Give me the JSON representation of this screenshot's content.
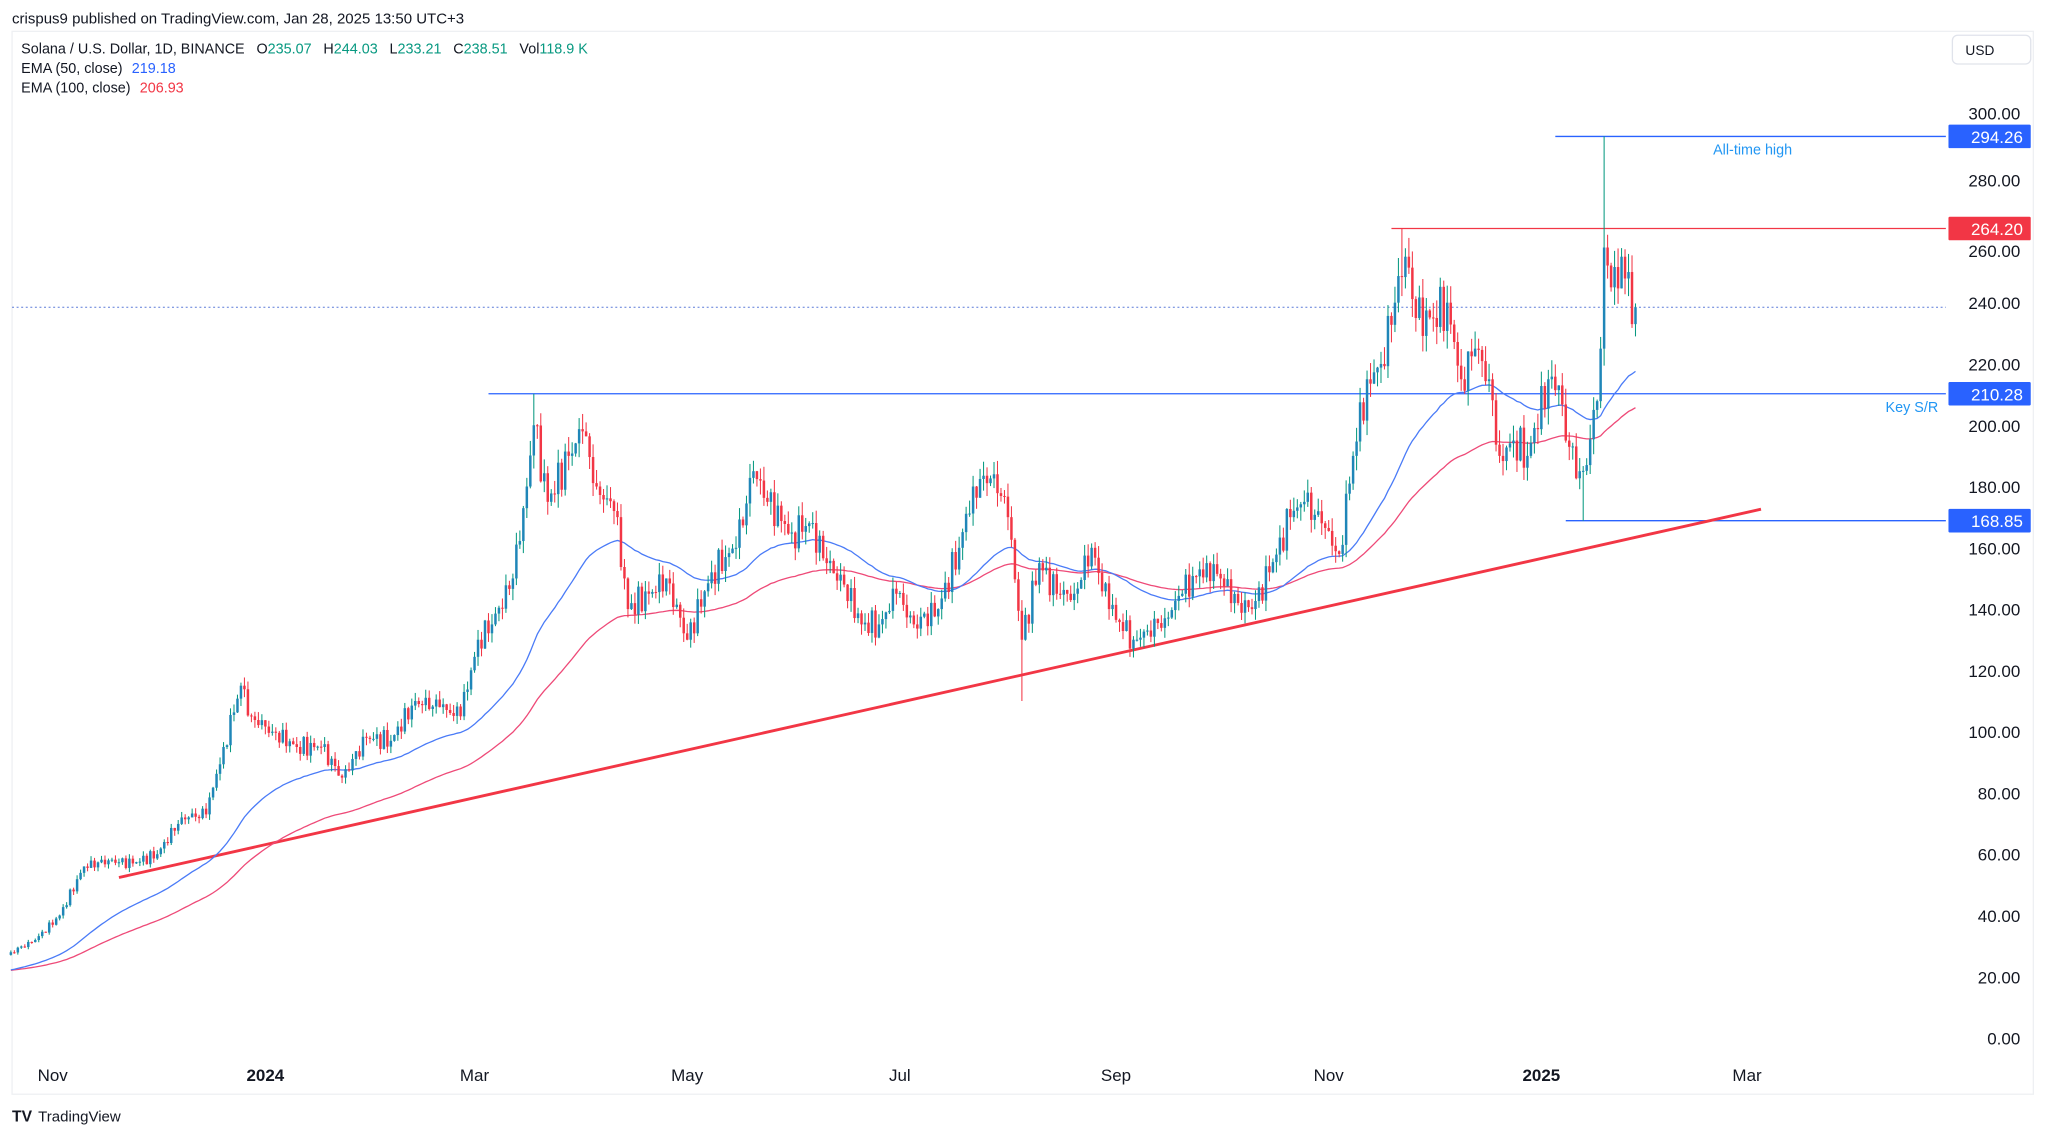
{
  "publisher_line": "crispus9 published on TradingView.com, Jan 28, 2025 13:50 UTC+3",
  "legend": {
    "symbol": "Solana / U.S. Dollar, 1D, BINANCE",
    "o_label": "O",
    "o_value": "235.07",
    "h_label": "H",
    "h_value": "244.03",
    "l_label": "L",
    "l_value": "233.21",
    "c_label": "C",
    "c_value": "238.51",
    "vol_label": "Vol",
    "vol_value": "118.9 K",
    "ema50_label": "EMA (50, close)",
    "ema50_value": "219.18",
    "ema100_label": "EMA (100, close)",
    "ema100_value": "206.93"
  },
  "currency_button": "USD",
  "footer_logo_text": "TradingView",
  "colors": {
    "up": "#089981",
    "up_body": "#1f86b8",
    "down": "#f23645",
    "ema50": "#4a7bf7",
    "ema100": "#ee4a78",
    "level_blue": "#2962ff",
    "level_red": "#f23645",
    "annotation_blue": "#2196f3"
  },
  "chart_data": {
    "type": "candlestick",
    "ylim": [
      0,
      300
    ],
    "y_ticks": [
      "300.00",
      "280.00",
      "260.00",
      "240.00",
      "220.00",
      "200.00",
      "180.00",
      "160.00",
      "140.00",
      "120.00",
      "100.00",
      "80.00",
      "60.00",
      "40.00",
      "20.00",
      "0.00"
    ],
    "x_ticks": [
      {
        "label": "Nov",
        "date": "2023-11-01",
        "bold": false
      },
      {
        "label": "2024",
        "date": "2024-01-01",
        "bold": true
      },
      {
        "label": "Mar",
        "date": "2024-03-01",
        "bold": false
      },
      {
        "label": "May",
        "date": "2024-05-01",
        "bold": false
      },
      {
        "label": "Jul",
        "date": "2024-07-01",
        "bold": false
      },
      {
        "label": "Sep",
        "date": "2024-09-01",
        "bold": false
      },
      {
        "label": "Nov",
        "date": "2024-11-01",
        "bold": false
      },
      {
        "label": "2025",
        "date": "2025-01-01",
        "bold": true
      },
      {
        "label": "Mar",
        "date": "2025-03-01",
        "bold": false
      }
    ],
    "approx_closes": [
      [
        "2023-10-20",
        28
      ],
      [
        "2023-10-27",
        32
      ],
      [
        "2023-11-03",
        40
      ],
      [
        "2023-11-10",
        56
      ],
      [
        "2023-11-17",
        58
      ],
      [
        "2023-11-24",
        57
      ],
      [
        "2023-12-01",
        60
      ],
      [
        "2023-12-08",
        72
      ],
      [
        "2023-12-15",
        73
      ],
      [
        "2023-12-20",
        95
      ],
      [
        "2023-12-25",
        115
      ],
      [
        "2023-12-28",
        105
      ],
      [
        "2024-01-03",
        100
      ],
      [
        "2024-01-10",
        95
      ],
      [
        "2024-01-17",
        95
      ],
      [
        "2024-01-23",
        85
      ],
      [
        "2024-01-30",
        98
      ],
      [
        "2024-02-06",
        97
      ],
      [
        "2024-02-13",
        110
      ],
      [
        "2024-02-20",
        108
      ],
      [
        "2024-02-26",
        105
      ],
      [
        "2024-03-02",
        130
      ],
      [
        "2024-03-06",
        135
      ],
      [
        "2024-03-12",
        150
      ],
      [
        "2024-03-16",
        180
      ],
      [
        "2024-03-18",
        200
      ],
      [
        "2024-03-22",
        175
      ],
      [
        "2024-03-28",
        190
      ],
      [
        "2024-04-01",
        198
      ],
      [
        "2024-04-05",
        180
      ],
      [
        "2024-04-10",
        172
      ],
      [
        "2024-04-13",
        150
      ],
      [
        "2024-04-14",
        140
      ],
      [
        "2024-04-20",
        145
      ],
      [
        "2024-04-25",
        150
      ],
      [
        "2024-05-01",
        130
      ],
      [
        "2024-05-08",
        152
      ],
      [
        "2024-05-15",
        160
      ],
      [
        "2024-05-20",
        185
      ],
      [
        "2024-05-24",
        175
      ],
      [
        "2024-05-31",
        165
      ],
      [
        "2024-06-05",
        168
      ],
      [
        "2024-06-10",
        155
      ],
      [
        "2024-06-15",
        148
      ],
      [
        "2024-06-20",
        135
      ],
      [
        "2024-06-25",
        135
      ],
      [
        "2024-06-30",
        145
      ],
      [
        "2024-07-05",
        135
      ],
      [
        "2024-07-12",
        140
      ],
      [
        "2024-07-18",
        160
      ],
      [
        "2024-07-22",
        180
      ],
      [
        "2024-07-28",
        184
      ],
      [
        "2024-08-01",
        170
      ],
      [
        "2024-08-05",
        130
      ],
      [
        "2024-08-10",
        155
      ],
      [
        "2024-08-15",
        145
      ],
      [
        "2024-08-20",
        145
      ],
      [
        "2024-08-25",
        160
      ],
      [
        "2024-08-30",
        140
      ],
      [
        "2024-09-06",
        130
      ],
      [
        "2024-09-10",
        133
      ],
      [
        "2024-09-15",
        137
      ],
      [
        "2024-09-20",
        145
      ],
      [
        "2024-09-27",
        155
      ],
      [
        "2024-10-01",
        150
      ],
      [
        "2024-10-06",
        142
      ],
      [
        "2024-10-10",
        140
      ],
      [
        "2024-10-15",
        152
      ],
      [
        "2024-10-21",
        170
      ],
      [
        "2024-10-25",
        175
      ],
      [
        "2024-10-30",
        168
      ],
      [
        "2024-11-04",
        158
      ],
      [
        "2024-11-08",
        190
      ],
      [
        "2024-11-12",
        215
      ],
      [
        "2024-11-16",
        220
      ],
      [
        "2024-11-20",
        240
      ],
      [
        "2024-11-23",
        255
      ],
      [
        "2024-11-26",
        235
      ],
      [
        "2024-12-01",
        235
      ],
      [
        "2024-12-05",
        240
      ],
      [
        "2024-12-09",
        215
      ],
      [
        "2024-12-13",
        225
      ],
      [
        "2024-12-17",
        215
      ],
      [
        "2024-12-20",
        190
      ],
      [
        "2024-12-24",
        195
      ],
      [
        "2024-12-28",
        190
      ],
      [
        "2025-01-03",
        215
      ],
      [
        "2025-01-06",
        213
      ],
      [
        "2025-01-08",
        195
      ],
      [
        "2025-01-12",
        185
      ],
      [
        "2025-01-14",
        187
      ],
      [
        "2025-01-16",
        205
      ],
      [
        "2025-01-18",
        225
      ],
      [
        "2025-01-19",
        258
      ],
      [
        "2025-01-21",
        245
      ],
      [
        "2025-01-24",
        255
      ],
      [
        "2025-01-26",
        250
      ],
      [
        "2025-01-27",
        233
      ],
      [
        "2025-01-28",
        238.51
      ]
    ],
    "notable_wicks": [
      {
        "date": "2024-03-18",
        "high": 210.28
      },
      {
        "date": "2024-08-05",
        "low": 110
      },
      {
        "date": "2024-11-22",
        "high": 264.2
      },
      {
        "date": "2025-01-13",
        "low": 168.85
      },
      {
        "date": "2025-01-19",
        "high": 294.26
      }
    ],
    "last_price": 238.51,
    "levels": [
      {
        "price": 294.26,
        "label": "294.26",
        "from": "2025-01-05",
        "color": "blue",
        "annotation": "All-time high"
      },
      {
        "price": 264.2,
        "label": "264.20",
        "from": "2024-11-19",
        "color": "red",
        "annotation": ""
      },
      {
        "price": 210.28,
        "label": "210.28",
        "from": "2024-03-05",
        "color": "blue",
        "annotation": "Key S/R"
      },
      {
        "price": 168.85,
        "label": "168.85",
        "from": "2025-01-08",
        "color": "blue",
        "annotation": ""
      }
    ],
    "trendline": {
      "start": [
        "2023-11-20",
        52.4
      ],
      "end": [
        "2025-03-05",
        172.6
      ]
    }
  }
}
